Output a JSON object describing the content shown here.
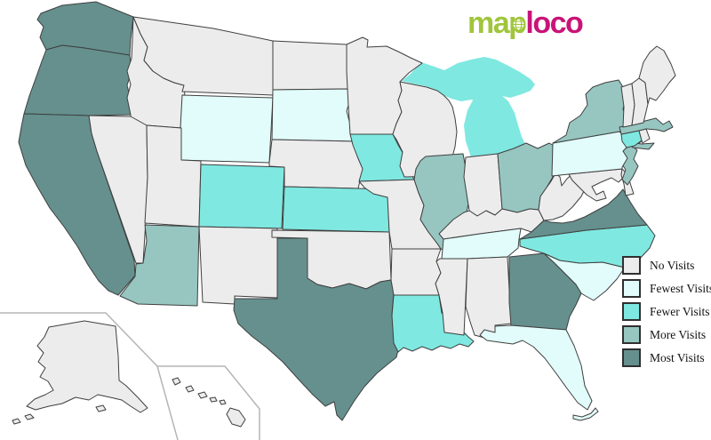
{
  "page": {
    "background_color": "#ffffff",
    "border_color": "#3f3f3f",
    "inset_border_color": "#b5b5b5"
  },
  "logo": {
    "text_map": "map",
    "text_loco": "loco",
    "color_map": "#a0c53c",
    "color_loco": "#c81478"
  },
  "legend": {
    "order": [
      "no_visits",
      "fewest",
      "fewer",
      "more",
      "most"
    ]
  },
  "map": {
    "categories": {
      "no_visits": {
        "label": "No Visits",
        "color": "#ececec"
      },
      "fewest": {
        "label": "Fewest Visits",
        "color": "#e1fcfa"
      },
      "fewer": {
        "label": "Fewer Visits",
        "color": "#7fe8e1"
      },
      "more": {
        "label": "More Visits",
        "color": "#97c6c1"
      },
      "most": {
        "label": "Most Visits",
        "color": "#65908e"
      }
    },
    "states": [
      {
        "id": "MI",
        "name": "Michigan",
        "category": "fewer"
      },
      {
        "id": "WA",
        "name": "Washington",
        "category": "most"
      },
      {
        "id": "OR",
        "name": "Oregon",
        "category": "most"
      },
      {
        "id": "CA",
        "name": "California",
        "category": "most"
      },
      {
        "id": "ID",
        "name": "Idaho",
        "category": "no_visits"
      },
      {
        "id": "NV",
        "name": "Nevada",
        "category": "no_visits"
      },
      {
        "id": "MT",
        "name": "Montana",
        "category": "no_visits"
      },
      {
        "id": "WY",
        "name": "Wyoming",
        "category": "fewest"
      },
      {
        "id": "UT",
        "name": "Utah",
        "category": "no_visits"
      },
      {
        "id": "CO",
        "name": "Colorado",
        "category": "fewer"
      },
      {
        "id": "AZ",
        "name": "Arizona",
        "category": "more"
      },
      {
        "id": "NM",
        "name": "New Mexico",
        "category": "no_visits"
      },
      {
        "id": "ND",
        "name": "North Dakota",
        "category": "no_visits"
      },
      {
        "id": "SD",
        "name": "South Dakota",
        "category": "fewest"
      },
      {
        "id": "NE",
        "name": "Nebraska",
        "category": "no_visits"
      },
      {
        "id": "KS",
        "name": "Kansas",
        "category": "fewer"
      },
      {
        "id": "OK",
        "name": "Oklahoma",
        "category": "no_visits"
      },
      {
        "id": "TX",
        "name": "Texas",
        "category": "most"
      },
      {
        "id": "MN",
        "name": "Minnesota",
        "category": "no_visits"
      },
      {
        "id": "IA",
        "name": "Iowa",
        "category": "fewer"
      },
      {
        "id": "MO",
        "name": "Missouri",
        "category": "no_visits"
      },
      {
        "id": "AR",
        "name": "Arkansas",
        "category": "no_visits"
      },
      {
        "id": "LA",
        "name": "Louisiana",
        "category": "fewer"
      },
      {
        "id": "WI",
        "name": "Wisconsin",
        "category": "no_visits"
      },
      {
        "id": "IL",
        "name": "Illinois",
        "category": "more"
      },
      {
        "id": "IN",
        "name": "Indiana",
        "category": "no_visits"
      },
      {
        "id": "OH",
        "name": "Ohio",
        "category": "more"
      },
      {
        "id": "KY",
        "name": "Kentucky",
        "category": "no_visits"
      },
      {
        "id": "TN",
        "name": "Tennessee",
        "category": "fewest"
      },
      {
        "id": "MS",
        "name": "Mississippi",
        "category": "no_visits"
      },
      {
        "id": "AL",
        "name": "Alabama",
        "category": "no_visits"
      },
      {
        "id": "GA",
        "name": "Georgia",
        "category": "most"
      },
      {
        "id": "FL",
        "name": "Florida",
        "category": "fewest"
      },
      {
        "id": "SC",
        "name": "South Carolina",
        "category": "fewest"
      },
      {
        "id": "NC",
        "name": "North Carolina",
        "category": "fewer"
      },
      {
        "id": "VA",
        "name": "Virginia",
        "category": "most"
      },
      {
        "id": "WV",
        "name": "West Virginia",
        "category": "no_visits"
      },
      {
        "id": "MD",
        "name": "Maryland",
        "category": "no_visits"
      },
      {
        "id": "DE",
        "name": "Delaware",
        "category": "no_visits"
      },
      {
        "id": "NJ",
        "name": "New Jersey",
        "category": "more"
      },
      {
        "id": "PA",
        "name": "Pennsylvania",
        "category": "fewest"
      },
      {
        "id": "NY",
        "name": "New York",
        "category": "more"
      },
      {
        "id": "CT",
        "name": "Connecticut",
        "category": "fewer"
      },
      {
        "id": "RI",
        "name": "Rhode Island",
        "category": "no_visits"
      },
      {
        "id": "MA",
        "name": "Massachusetts",
        "category": "more"
      },
      {
        "id": "VT",
        "name": "Vermont",
        "category": "no_visits"
      },
      {
        "id": "NH",
        "name": "New Hampshire",
        "category": "no_visits"
      },
      {
        "id": "ME",
        "name": "Maine",
        "category": "no_visits"
      },
      {
        "id": "AK",
        "name": "Alaska",
        "category": "no_visits"
      },
      {
        "id": "HI",
        "name": "Hawaii",
        "category": "no_visits"
      }
    ]
  }
}
